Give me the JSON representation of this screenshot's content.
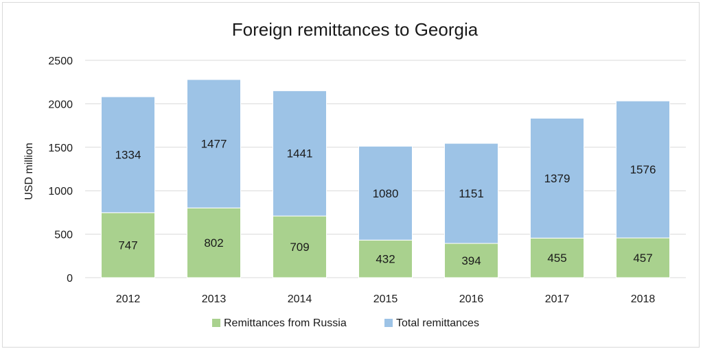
{
  "chart_data": {
    "type": "bar",
    "stacked": true,
    "title": "Foreign remittances to Georgia",
    "xlabel": "",
    "ylabel": "USD million",
    "ylim": [
      0,
      2500
    ],
    "yticks": [
      0,
      500,
      1000,
      1500,
      2000,
      2500
    ],
    "grid": true,
    "legend_position": "bottom",
    "categories": [
      "2012",
      "2013",
      "2014",
      "2015",
      "2016",
      "2017",
      "2018"
    ],
    "series": [
      {
        "name": "Remittances from Russia",
        "color": "#a9d18e",
        "values": [
          747,
          802,
          709,
          432,
          394,
          455,
          457
        ]
      },
      {
        "name": "Total remittances",
        "color": "#9dc3e6",
        "values": [
          1334,
          1477,
          1441,
          1080,
          1151,
          1379,
          1576
        ]
      }
    ]
  }
}
